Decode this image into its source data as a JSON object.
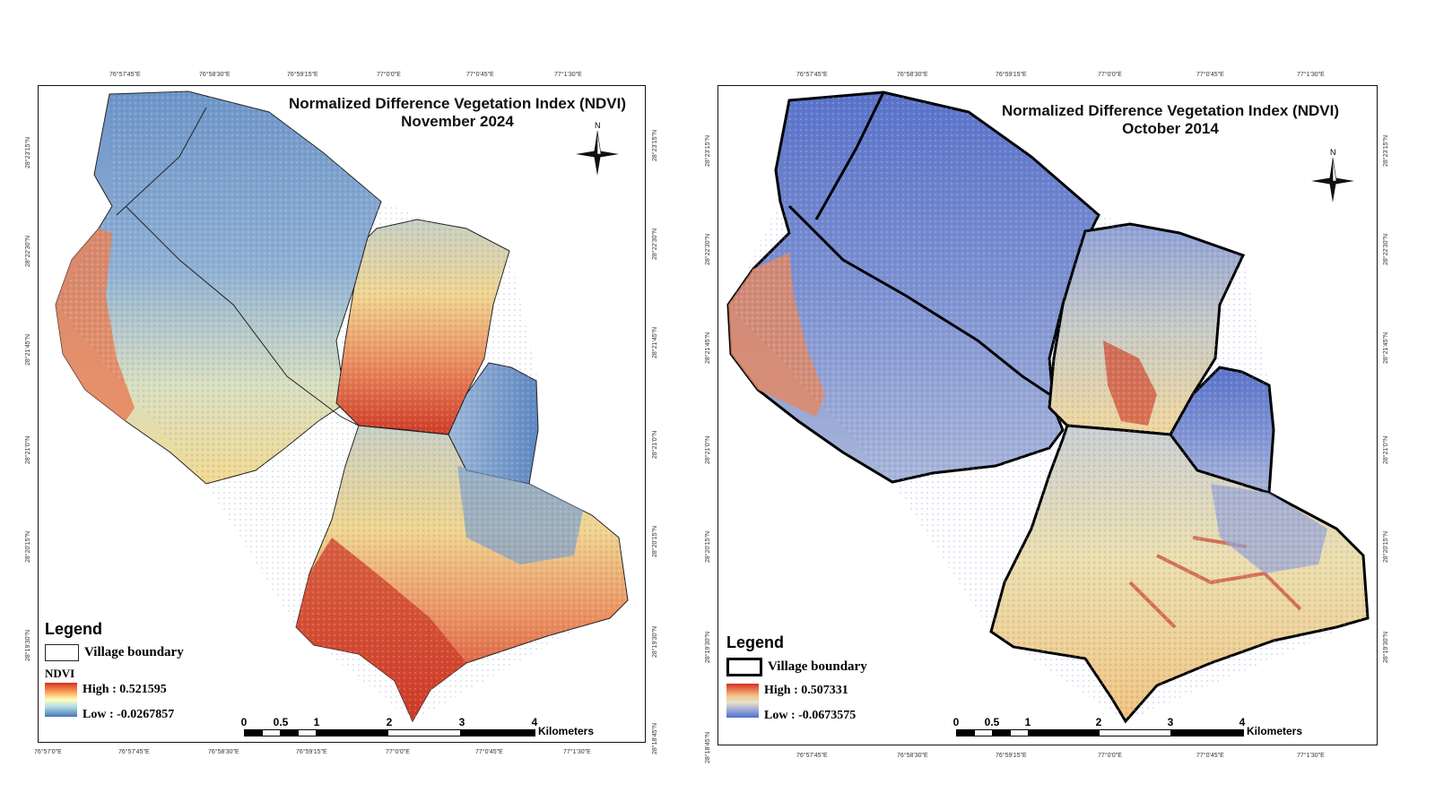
{
  "left_map": {
    "title_line1": "Normalized Difference Vegetation Index (NDVI)",
    "title_line2": "November 2024",
    "north_label": "N",
    "legend": {
      "title": "Legend",
      "village_boundary": "Village boundary",
      "ndvi_label": "NDVI",
      "high": "High : 0.521595",
      "low": "Low : -0.0267857"
    },
    "scale": {
      "labels": [
        "0",
        "0.5",
        "1",
        "2",
        "3",
        "4"
      ],
      "units": "Kilometers"
    },
    "top_ticks": [
      "76°57'45\"E",
      "76°58'30\"E",
      "76°59'15\"E",
      "77°0'0\"E",
      "77°0'45\"E",
      "77°1'30\"E"
    ],
    "bottom_ticks": [
      "76°57'0\"E",
      "76°57'45\"E",
      "76°58'30\"E",
      "76°59'15\"E",
      "77°0'0\"E",
      "77°0'45\"E",
      "77°1'30\"E"
    ],
    "left_ticks": [
      "28°23'15\"N",
      "28°22'30\"N",
      "28°21'45\"N",
      "28°21'0\"N",
      "28°20'15\"N",
      "28°19'30\"N"
    ],
    "right_ticks": [
      "28°23'15\"N",
      "28°22'30\"N",
      "28°21'45\"N",
      "28°21'0\"N",
      "28°20'15\"N",
      "28°19'30\"N",
      "28°18'45\"N"
    ]
  },
  "right_map": {
    "title_line1": "Normalized Difference Vegetation Index (NDVI)",
    "title_line2": "October 2014",
    "north_label": "N",
    "legend": {
      "title": "Legend",
      "village_boundary": "Village boundary",
      "high": "High : 0.507331",
      "low": "Low : -0.0673575"
    },
    "scale": {
      "labels": [
        "0",
        "0.5",
        "1",
        "2",
        "3",
        "4"
      ],
      "units": "Kilometers"
    },
    "top_ticks": [
      "76°57'45\"E",
      "76°58'30\"E",
      "76°59'15\"E",
      "77°0'0\"E",
      "77°0'45\"E",
      "77°1'30\"E"
    ],
    "bottom_ticks": [
      "76°57'45\"E",
      "76°58'30\"E",
      "76°59'15\"E",
      "77°0'0\"E",
      "77°0'45\"E",
      "77°1'30\"E"
    ],
    "left_ticks": [
      "28°23'15\"N",
      "28°22'30\"N",
      "28°21'45\"N",
      "28°21'0\"N",
      "28°20'15\"N",
      "28°19'30\"N",
      "28°18'45\"N"
    ],
    "right_ticks": [
      "28°23'15\"N",
      "28°22'30\"N",
      "28°21'45\"N",
      "28°21'0\"N",
      "28°20'15\"N",
      "28°19'30\"N"
    ]
  },
  "colors": {
    "high": "#d7301f",
    "mid": "#ffffbf",
    "low": "#4575b4"
  }
}
